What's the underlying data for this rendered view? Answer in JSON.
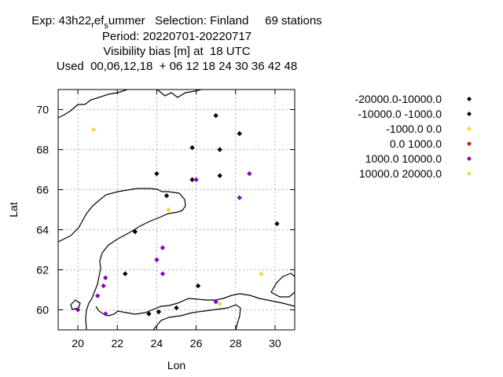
{
  "title": {
    "line1_prefix": "Exp: 43h22",
    "line1_sub1": "r",
    "line1_mid": "ef",
    "line1_sub2": "s",
    "line1_suffix": "ummer   Selection: Finland     69 stations",
    "line2": "Period: 20220701-20220717",
    "line3": "Visibility bias [m] at  18 UTC",
    "line4": "Used  00,06,12,18  + 06 12 18 24 30 36 42 48"
  },
  "chart_data": {
    "type": "scatter",
    "xlabel": "Lon",
    "ylabel": "Lat",
    "xlim": [
      19,
      31
    ],
    "ylim": [
      59,
      71
    ],
    "xticks": [
      20,
      22,
      24,
      26,
      28,
      30
    ],
    "yticks": [
      60,
      62,
      64,
      66,
      68,
      70
    ],
    "grid": true,
    "legend_position": "right",
    "series": [
      {
        "name": "-20000.0-10000.0",
        "color": "#000000",
        "points": []
      },
      {
        "name": "-10000.0 -1000.0",
        "color": "#000000",
        "points": [
          [
            27.0,
            69.7
          ],
          [
            28.2,
            68.8
          ],
          [
            25.8,
            68.1
          ],
          [
            27.2,
            68.0
          ],
          [
            24.0,
            66.8
          ],
          [
            27.2,
            66.7
          ],
          [
            25.8,
            66.5
          ],
          [
            24.5,
            65.7
          ],
          [
            22.9,
            63.9
          ],
          [
            30.1,
            64.3
          ],
          [
            22.4,
            61.8
          ],
          [
            26.1,
            61.2
          ],
          [
            23.6,
            59.8
          ],
          [
            24.1,
            59.9
          ],
          [
            25.0,
            60.1
          ]
        ]
      },
      {
        "name": "-1000.0 0.0",
        "color": "#f2d647",
        "points": [
          [
            20.8,
            69.0
          ],
          [
            24.6,
            65.0
          ],
          [
            29.3,
            61.8
          ],
          [
            27.2,
            60.3
          ]
        ]
      },
      {
        "name": "0.0 1000.0",
        "color": "#cc1111",
        "points": []
      },
      {
        "name": "1000.0 10000.0",
        "color": "#8a00c8",
        "points": [
          [
            28.7,
            66.8
          ],
          [
            26.0,
            66.5
          ],
          [
            28.2,
            65.6
          ],
          [
            24.3,
            63.1
          ],
          [
            24.0,
            62.5
          ],
          [
            24.3,
            61.8
          ],
          [
            21.4,
            61.6
          ],
          [
            21.3,
            61.2
          ],
          [
            21.0,
            60.7
          ],
          [
            20.0,
            60.0
          ],
          [
            21.4,
            59.8
          ],
          [
            27.0,
            60.4
          ]
        ]
      },
      {
        "name": "10000.0 20000.0",
        "color": "#f2d647",
        "points": []
      }
    ]
  }
}
